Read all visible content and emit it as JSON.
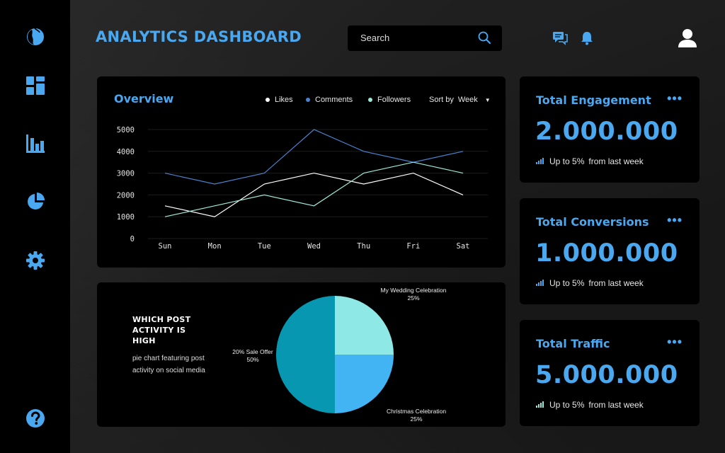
{
  "header": {
    "title": "ANALYTICS DASHBOARD",
    "search_placeholder": "Search"
  },
  "sidebar": {
    "items": [
      {
        "icon": "logo-icon"
      },
      {
        "icon": "dashboard-icon"
      },
      {
        "icon": "bar-chart-icon"
      },
      {
        "icon": "pie-chart-icon"
      },
      {
        "icon": "gear-icon"
      },
      {
        "icon": "help-icon"
      }
    ]
  },
  "colors": {
    "accent": "#4aa8f0",
    "likes": "#ffffff",
    "comments": "#4a83d0",
    "followers": "#9ee8d8",
    "pie_dark": "#0797b0",
    "pie_light": "#8ee8e6",
    "pie_blue": "#42b4f4"
  },
  "overview": {
    "title": "Overview",
    "legend": [
      "Likes",
      "Comments",
      "Followers"
    ],
    "sort_label": "Sort by",
    "sort_value": "Week"
  },
  "chart_data": [
    {
      "type": "line",
      "x": [
        "Sun",
        "Mon",
        "Tue",
        "Wed",
        "Thu",
        "Fri",
        "Sat"
      ],
      "y_ticks": [
        "0",
        "1000",
        "2000",
        "3000",
        "4000",
        "5000"
      ],
      "ylim": [
        0,
        5000
      ],
      "grid": true,
      "legend_position": "top-right",
      "series": [
        {
          "name": "Likes",
          "color": "#ffffff",
          "values": [
            1500,
            1000,
            2500,
            3000,
            2500,
            3000,
            2000
          ]
        },
        {
          "name": "Comments",
          "color": "#4a83d0",
          "values": [
            3000,
            2500,
            3000,
            5000,
            4000,
            3500,
            4000
          ]
        },
        {
          "name": "Followers",
          "color": "#9ee8d8",
          "values": [
            1000,
            1500,
            2000,
            1500,
            3000,
            3500,
            3000
          ]
        }
      ]
    },
    {
      "type": "pie",
      "slices": [
        {
          "label": "My Wedding Celebration",
          "pct_label": "25%",
          "value": 25,
          "color": "#8ee8e6"
        },
        {
          "label": "Christmas Celebration",
          "pct_label": "25%",
          "value": 25,
          "color": "#42b4f4"
        },
        {
          "label": "20% Sale Offer",
          "pct_label": "50%",
          "value": 50,
          "color": "#0797b0"
        }
      ]
    }
  ],
  "pie_card": {
    "heading": "WHICH POST ACTIVITY IS HIGH",
    "description": "pie chart featuring post activity on social media"
  },
  "stats": [
    {
      "title": "Total Engagement",
      "value": "2.000.000",
      "change": "Up to 5%",
      "suffix": "from last week"
    },
    {
      "title": "Total Conversions",
      "value": "1.000.000",
      "change": "Up to 5%",
      "suffix": "from last week"
    },
    {
      "title": "Total Traffic",
      "value": "5.000.000",
      "change": "Up to 5%",
      "suffix": "from last week"
    }
  ]
}
